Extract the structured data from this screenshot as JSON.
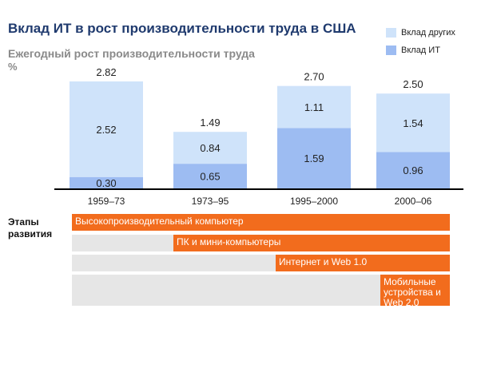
{
  "header": {
    "title": "Вклад ИТ в рост производительности труда в США",
    "subtitle": "Ежегодный рост производительности труда",
    "unit": "%"
  },
  "legend": [
    {
      "label": "Вклад других",
      "color": "#cfe3fa"
    },
    {
      "label": "Вклад ИТ",
      "color": "#9dbcf2"
    }
  ],
  "chart_data": {
    "type": "bar",
    "stacked": true,
    "categories": [
      "1959–73",
      "1973–95",
      "1995–2000",
      "2000–06"
    ],
    "series": [
      {
        "name": "Вклад ИТ",
        "values": [
          0.3,
          0.65,
          1.59,
          0.96
        ],
        "labels": [
          "0.30",
          "0.65",
          "1.59",
          "0.96"
        ],
        "color": "#9dbcf2"
      },
      {
        "name": "Вклад других",
        "values": [
          2.52,
          0.84,
          1.11,
          1.54
        ],
        "labels": [
          "2.52",
          "0.84",
          "1.11",
          "1.54"
        ],
        "color": "#cfe3fa"
      }
    ],
    "totals": [
      "2.82",
      "1.49",
      "2.70",
      "2.50"
    ],
    "ylim": [
      0,
      2.82
    ]
  },
  "stages": {
    "label": "Этапы развития",
    "items": [
      {
        "label": "Высокопроизводительный компьютер",
        "start": 0
      },
      {
        "label": "ПК и мини-компьютеры",
        "start": 1
      },
      {
        "label": "Интернет и Web 1.0",
        "start": 2
      },
      {
        "label": "Мобильные устройства и Web 2.0",
        "start": 3
      }
    ]
  }
}
